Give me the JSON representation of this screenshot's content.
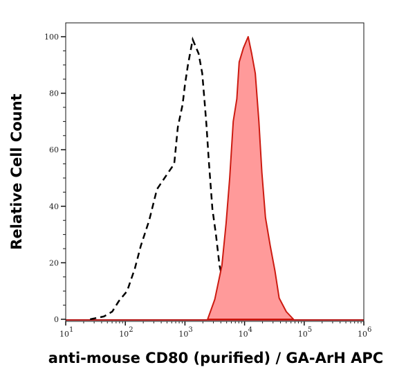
{
  "chart_data": {
    "type": "area",
    "title": "",
    "xlabel": "anti-mouse CD80 (purified) / GA-ArH APC",
    "ylabel": "Relative Cell Count",
    "x_scale": "log",
    "xlim": [
      10,
      1000000
    ],
    "ylim": [
      0,
      105
    ],
    "grid": false,
    "x_ticks": [
      {
        "value": 10,
        "base": "10",
        "exp": "1"
      },
      {
        "value": 100,
        "base": "10",
        "exp": "2"
      },
      {
        "value": 1000,
        "base": "10",
        "exp": "3"
      },
      {
        "value": 10000,
        "base": "10",
        "exp": "4"
      },
      {
        "value": 100000,
        "base": "10",
        "exp": "5"
      },
      {
        "value": 1000000,
        "base": "10",
        "exp": "6"
      }
    ],
    "y_ticks": [
      "0",
      "20",
      "40",
      "60",
      "80",
      "100"
    ],
    "series": [
      {
        "style": "dashed-line",
        "color": "#000000",
        "log10_x": [
          1.41,
          1.64,
          1.78,
          1.89,
          2.03,
          2.16,
          2.26,
          2.4,
          2.53,
          2.69,
          2.82,
          2.88,
          2.96,
          3.0,
          3.05,
          3.13,
          3.23,
          3.29,
          3.33,
          3.36,
          3.4,
          3.46,
          3.52,
          3.58,
          3.69,
          3.83,
          3.89
        ],
        "y": [
          0,
          1,
          2.7,
          6.4,
          10,
          18,
          26,
          35,
          46,
          51,
          55,
          68,
          76,
          83,
          90,
          99,
          94,
          87,
          77,
          69,
          56,
          39,
          30,
          19,
          9,
          3,
          0
        ]
      },
      {
        "style": "filled",
        "color": "#cc1a10",
        "fill": "#ff9a9a",
        "log10_x": [
          3.38,
          3.5,
          3.62,
          3.69,
          3.75,
          3.81,
          3.87,
          3.91,
          3.98,
          4.06,
          4.12,
          4.18,
          4.24,
          4.29,
          4.35,
          4.43,
          4.51,
          4.58,
          4.7,
          4.82
        ],
        "y": [
          0,
          7,
          19,
          34,
          50,
          70,
          78,
          91,
          96,
          100,
          94,
          87,
          70,
          52,
          36,
          26,
          17,
          7.5,
          2.7,
          0
        ]
      }
    ]
  }
}
